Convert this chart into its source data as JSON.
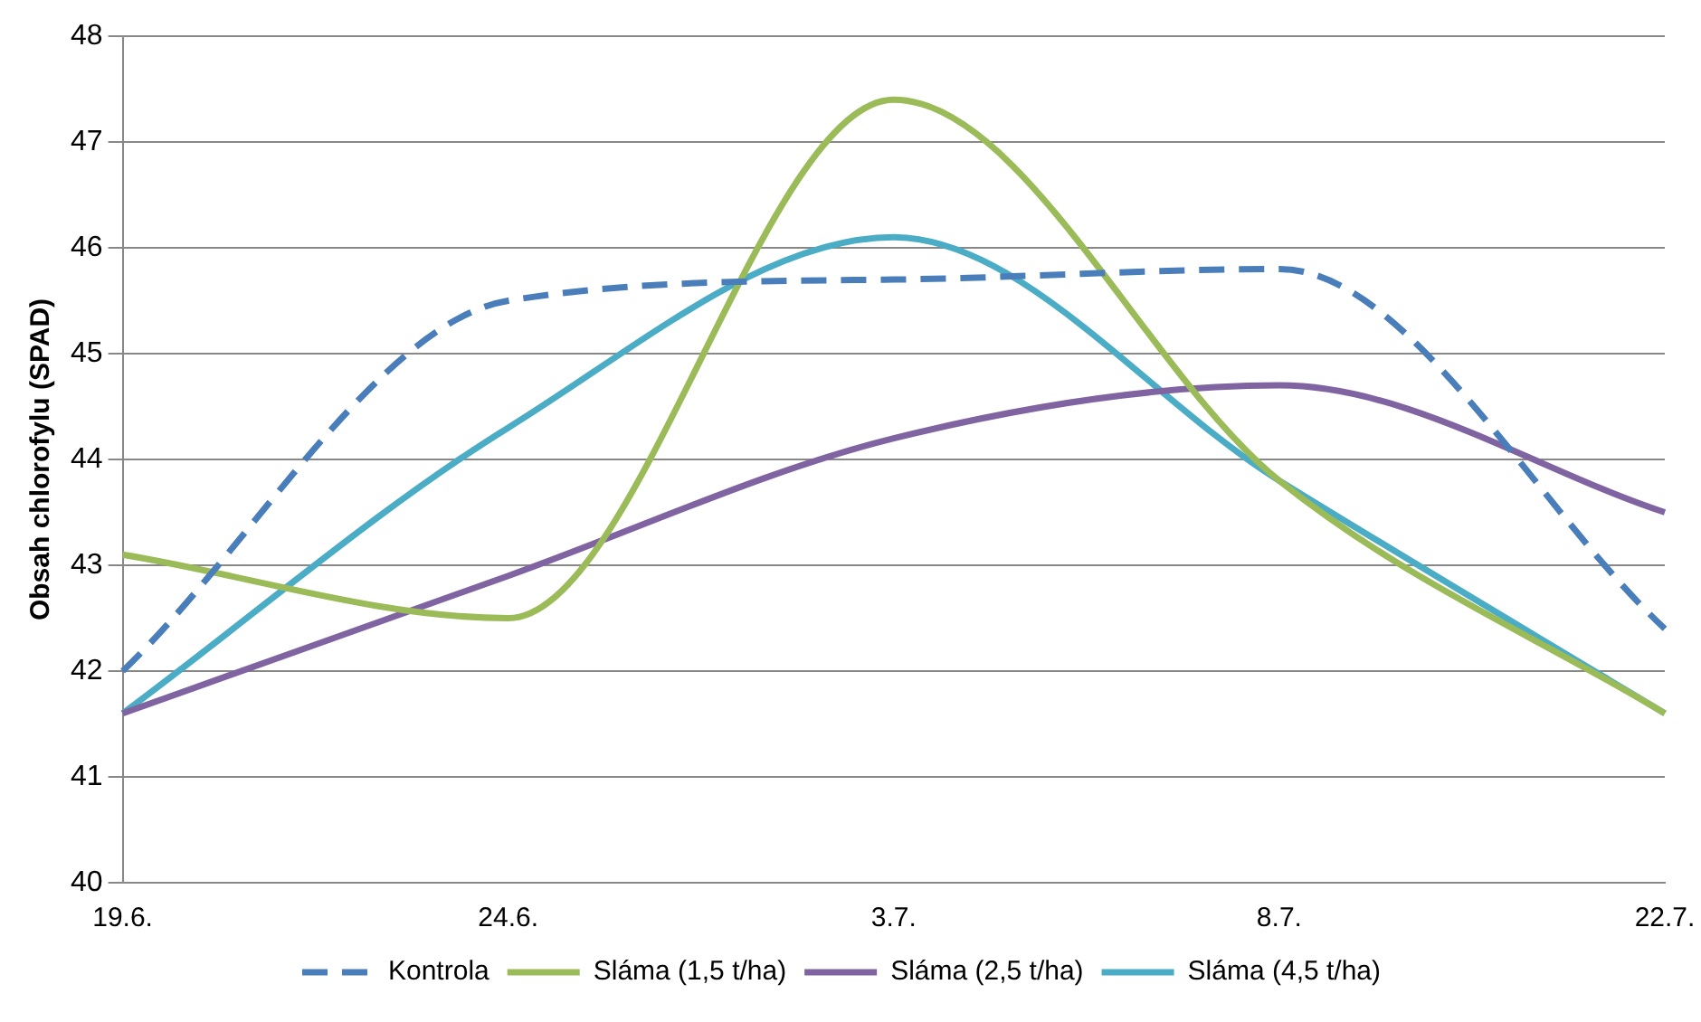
{
  "chart_data": {
    "type": "line",
    "ylabel": "Obsah chlorofylu (SPAD)",
    "categories": [
      "19.6.",
      "24.6.",
      "3.7.",
      "8.7.",
      "22.7."
    ],
    "series": [
      {
        "name": "Kontrola",
        "color": "#4a7ebb",
        "line_style": "dashed",
        "values": [
          42.0,
          45.5,
          45.7,
          45.8,
          42.4
        ]
      },
      {
        "name": "Sláma (1,5 t/ha)",
        "color": "#9bbb59",
        "line_style": "solid",
        "values": [
          43.1,
          42.5,
          47.4,
          43.8,
          41.6
        ]
      },
      {
        "name": "Sláma (2,5 t/ha)",
        "color": "#8064a2",
        "line_style": "solid",
        "values": [
          41.6,
          42.9,
          44.2,
          44.7,
          43.5
        ]
      },
      {
        "name": "Sláma (4,5 t/ha)",
        "color": "#4bacc6",
        "line_style": "solid",
        "values": [
          41.6,
          44.3,
          46.1,
          43.8,
          41.6
        ]
      }
    ],
    "ylim": [
      40,
      48
    ],
    "yticks": [
      40,
      41,
      42,
      43,
      44,
      45,
      46,
      47,
      48
    ],
    "grid": "y",
    "legend": "bottom",
    "marker": "none"
  }
}
